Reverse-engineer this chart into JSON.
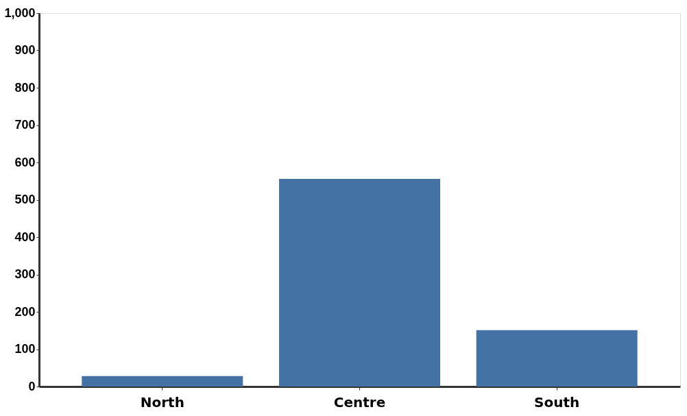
{
  "chart_data": {
    "type": "bar",
    "categories": [
      "North",
      "Centre",
      "South"
    ],
    "values": [
      28,
      556,
      151
    ],
    "color": "#4472a4",
    "ylim": [
      0,
      1000
    ],
    "yticks": [
      0,
      100,
      200,
      300,
      400,
      500,
      600,
      700,
      800,
      900,
      {
        "value": 1000,
        "label": "1,000"
      }
    ],
    "grid": false
  }
}
